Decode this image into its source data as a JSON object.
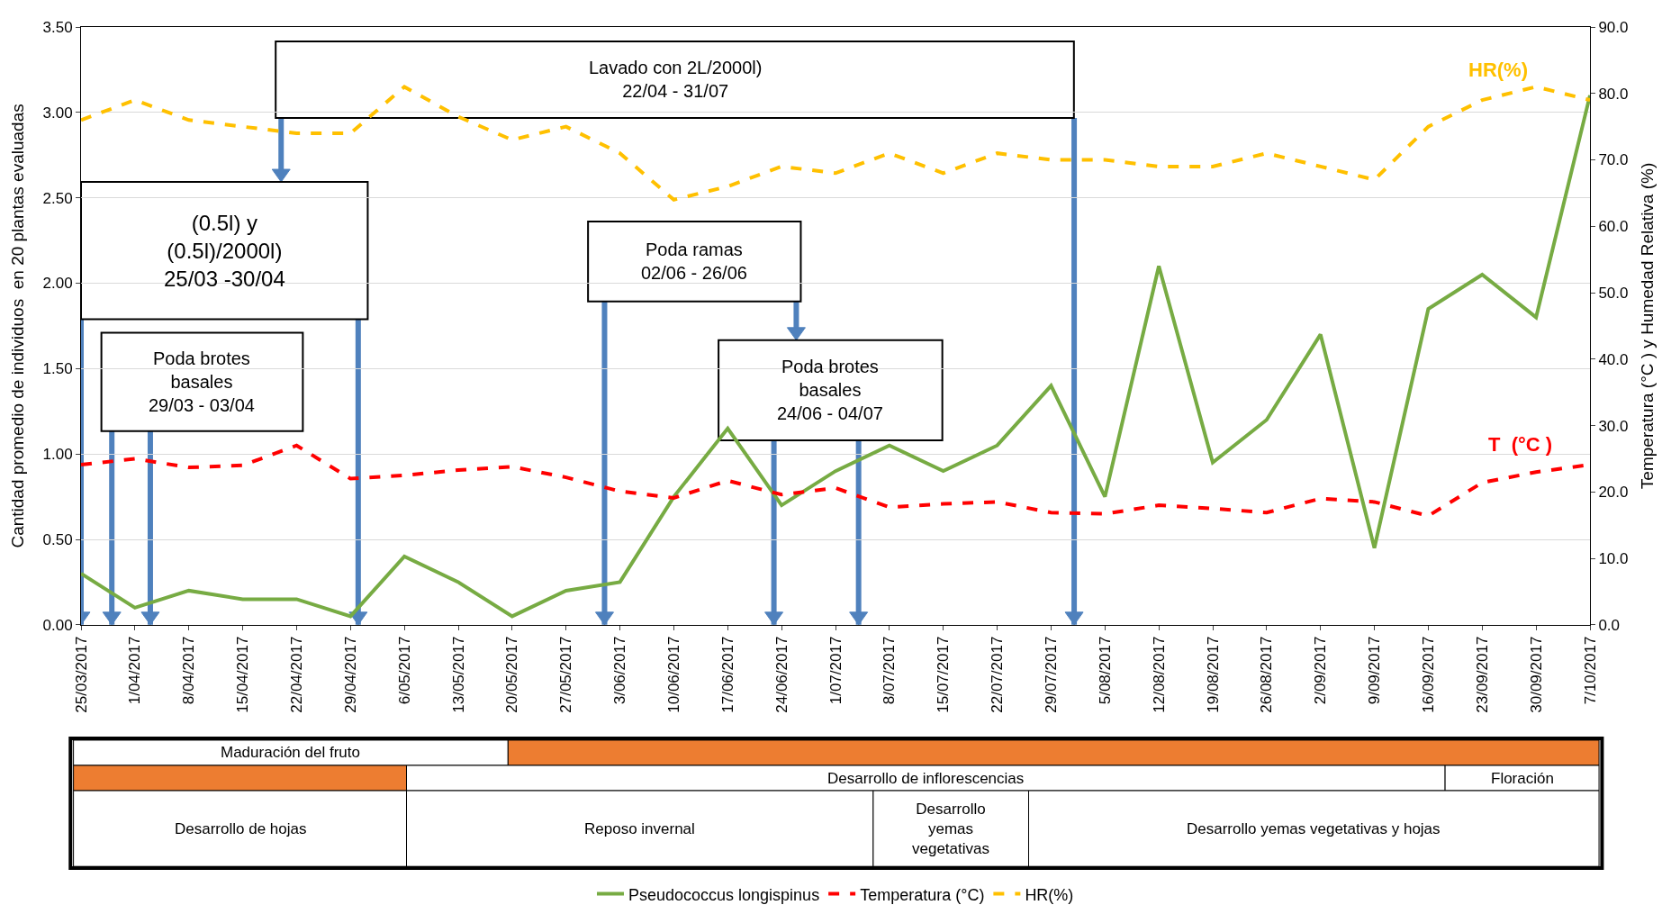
{
  "chart_data": {
    "type": "line",
    "xlabel": null,
    "ylabel": "Cantidad promedio de individuos  en 20 plantas evaluadas",
    "y2label": "Temperatura (°C ) y Humedad Relativa (%)",
    "x": [
      "2017-03-25",
      "2017-04-01",
      "2017-04-08",
      "2017-04-15",
      "2017-04-22",
      "2017-04-29",
      "2017-05-06",
      "2017-05-13",
      "2017-05-20",
      "2017-05-27",
      "2017-06-03",
      "2017-06-10",
      "2017-06-17",
      "2017-06-24",
      "2017-07-01",
      "2017-07-08",
      "2017-07-15",
      "2017-07-22",
      "2017-07-29",
      "2017-08-05",
      "2017-08-12",
      "2017-08-19",
      "2017-08-26",
      "2017-09-02",
      "2017-09-09",
      "2017-09-16",
      "2017-09-23",
      "2017-09-30",
      "2017-10-07"
    ],
    "series": [
      {
        "name": "Pseudococcus longispinus",
        "color": "#77ab43",
        "line_style": "solid",
        "values": [
          0.3,
          0.1,
          0.2,
          0.15,
          0.15,
          0.05,
          0.4,
          0.25,
          0.05,
          0.2,
          0.25,
          0.75,
          1.15,
          0.7,
          0.9,
          1.05,
          0.9,
          1.05,
          1.4,
          0.75,
          2.1,
          0.95,
          1.2,
          1.7,
          0.45,
          1.85,
          2.05,
          1.8,
          3.1
        ]
      },
      {
        "name": "Temperatura (°C)",
        "color": "#ff0000",
        "line_style": "dashed",
        "axis": "y2",
        "values": [
          24.1,
          25,
          23.7,
          24,
          27,
          22,
          22.5,
          23.3,
          23.8,
          22.2,
          20.1,
          19.1,
          21.7,
          19.6,
          20.6,
          17.7,
          18.2,
          18.5,
          16.9,
          16.7,
          18,
          17.5,
          16.9,
          19,
          18.5,
          16.4,
          21.4,
          23,
          24.1
        ]
      },
      {
        "name": "HR(%)",
        "color": "#ffc000",
        "line_style": "dashed",
        "axis": "y2",
        "values": [
          76,
          79,
          76,
          75,
          74,
          74,
          81,
          76.5,
          73,
          75,
          71,
          64,
          66,
          69,
          68,
          71,
          68,
          71,
          70,
          70,
          69,
          69,
          71,
          69,
          67,
          75,
          79,
          81,
          79
        ]
      }
    ],
    "xlim": [
      "2017-03-25",
      "2017-10-07"
    ],
    "xticks": [
      {
        "value": "2017-03-25",
        "label": "25/03/2017"
      },
      {
        "value": "2017-04-01",
        "label": "1/04/2017"
      },
      {
        "value": "2017-04-08",
        "label": "8/04/2017"
      },
      {
        "value": "2017-04-15",
        "label": "15/04/2017"
      },
      {
        "value": "2017-04-22",
        "label": "22/04/2017"
      },
      {
        "value": "2017-04-29",
        "label": "29/04/2017"
      },
      {
        "value": "2017-05-06",
        "label": "6/05/2017"
      },
      {
        "value": "2017-05-13",
        "label": "13/05/2017"
      },
      {
        "value": "2017-05-20",
        "label": "20/05/2017"
      },
      {
        "value": "2017-05-27",
        "label": "27/05/2017"
      },
      {
        "value": "2017-06-03",
        "label": "3/06/2017"
      },
      {
        "value": "2017-06-10",
        "label": "10/06/2017"
      },
      {
        "value": "2017-06-17",
        "label": "17/06/2017"
      },
      {
        "value": "2017-06-24",
        "label": "24/06/2017"
      },
      {
        "value": "2017-07-01",
        "label": "1/07/2017"
      },
      {
        "value": "2017-07-08",
        "label": "8/07/2017"
      },
      {
        "value": "2017-07-15",
        "label": "15/07/2017"
      },
      {
        "value": "2017-07-22",
        "label": "22/07/2017"
      },
      {
        "value": "2017-07-29",
        "label": "29/07/2017"
      },
      {
        "value": "2017-08-05",
        "label": "5/08/2017"
      },
      {
        "value": "2017-08-12",
        "label": "12/08/2017"
      },
      {
        "value": "2017-08-19",
        "label": "19/08/2017"
      },
      {
        "value": "2017-08-26",
        "label": "26/08/2017"
      },
      {
        "value": "2017-09-02",
        "label": "2/09/2017"
      },
      {
        "value": "2017-09-09",
        "label": "9/09/2017"
      },
      {
        "value": "2017-09-16",
        "label": "16/09/2017"
      },
      {
        "value": "2017-09-23",
        "label": "23/09/2017"
      },
      {
        "value": "2017-09-30",
        "label": "30/09/2017"
      },
      {
        "value": "2017-10-07",
        "label": "7/10/2017"
      }
    ],
    "ylim": [
      0,
      3.5
    ],
    "yticks": [
      {
        "value": 0,
        "label": "0.00"
      },
      {
        "value": 0.5,
        "label": "0.50"
      },
      {
        "value": 1,
        "label": "1.00"
      },
      {
        "value": 1.5,
        "label": "1.50"
      },
      {
        "value": 2,
        "label": "2.00"
      },
      {
        "value": 2.5,
        "label": "2.50"
      },
      {
        "value": 3,
        "label": "3.00"
      },
      {
        "value": 3.5,
        "label": "3.50"
      }
    ],
    "y2lim": [
      0,
      90
    ],
    "y2ticks": [
      {
        "value": 0,
        "label": "0.0"
      },
      {
        "value": 10,
        "label": "10.0"
      },
      {
        "value": 20,
        "label": "20.0"
      },
      {
        "value": 30,
        "label": "30.0"
      },
      {
        "value": 40,
        "label": "40.0"
      },
      {
        "value": 50,
        "label": "50.0"
      },
      {
        "value": 60,
        "label": "60.0"
      },
      {
        "value": 70,
        "label": "70.0"
      },
      {
        "value": 80,
        "label": "80.0"
      },
      {
        "value": 90,
        "label": "90.0"
      }
    ],
    "grid": "y",
    "legend": "bottom",
    "marker": "none",
    "ref_lines": [
      {
        "axis": "x",
        "value": "2017-03-25",
        "color": "#4f81bd"
      },
      {
        "axis": "x",
        "value": "2017-03-29",
        "color": "#4f81bd"
      },
      {
        "axis": "x",
        "value": "2017-04-03",
        "color": "#4f81bd"
      },
      {
        "axis": "x",
        "value": "2017-04-30",
        "color": "#4f81bd"
      },
      {
        "axis": "x",
        "value": "2017-06-01",
        "color": "#4f81bd"
      },
      {
        "axis": "x",
        "value": "2017-06-23",
        "color": "#4f81bd"
      },
      {
        "axis": "x",
        "value": "2017-07-04",
        "color": "#4f81bd"
      },
      {
        "axis": "x",
        "value": "2017-08-01",
        "color": "#4f81bd"
      }
    ],
    "annotations": [
      "Lavado con 2L/2000l)\n22/04 - 31/07",
      "(0.5l) y\n(0.5l)/2000l)\n25/03 -30/04",
      "Poda brotes\nbasales\n29/03 - 03/04",
      "Poda ramas\n02/06 - 26/06",
      "Poda brotes\nbasales\n24/06 - 04/07",
      "HR(%)",
      "T  (°C )",
      "Maduración del fruto",
      "Desarrollo de inflorescencias",
      "Floración",
      "Desarrollo de hojas",
      "Reposo invernal",
      "Desarrollo\nyemas\nvegetativas",
      "Desarrollo yemas vegetativas y hojas"
    ]
  }
}
